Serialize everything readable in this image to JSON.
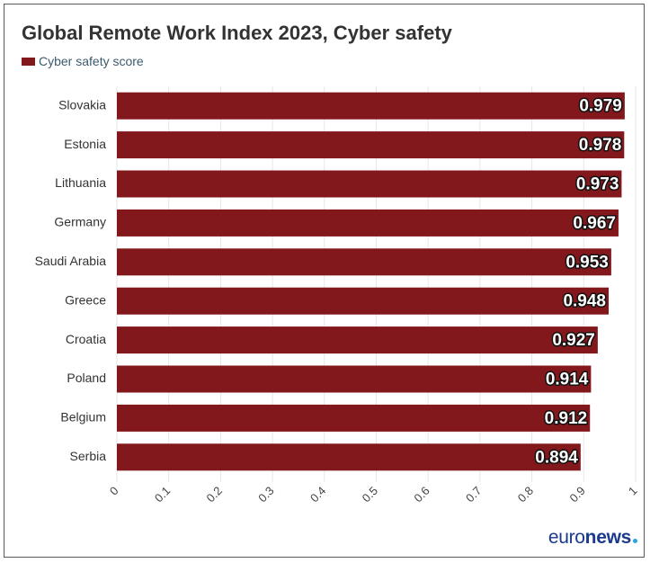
{
  "colors": {
    "bar": "#82181c",
    "text": "#333333",
    "grid": "#e6e6e6",
    "brand": "#1b3a8c",
    "brand_dot": "#2aa6de"
  },
  "brand": {
    "light": "euro",
    "bold": "news"
  },
  "chart_data": {
    "type": "bar",
    "orientation": "horizontal",
    "title": "Global Remote Work Index 2023, Cyber safety",
    "categories": [
      "Slovakia",
      "Estonia",
      "Lithuania",
      "Germany",
      "Saudi Arabia",
      "Greece",
      "Croatia",
      "Poland",
      "Belgium",
      "Serbia"
    ],
    "series": [
      {
        "name": "Cyber safety score",
        "values": [
          0.979,
          0.978,
          0.973,
          0.967,
          0.953,
          0.948,
          0.927,
          0.914,
          0.912,
          0.894
        ]
      }
    ],
    "xlim": [
      0,
      1
    ],
    "xticks": [
      "0",
      "0.1",
      "0.2",
      "0.3",
      "0.4",
      "0.5",
      "0.6",
      "0.7",
      "0.8",
      "0.9",
      "1"
    ],
    "grid": true,
    "legend_position": "top-left"
  }
}
